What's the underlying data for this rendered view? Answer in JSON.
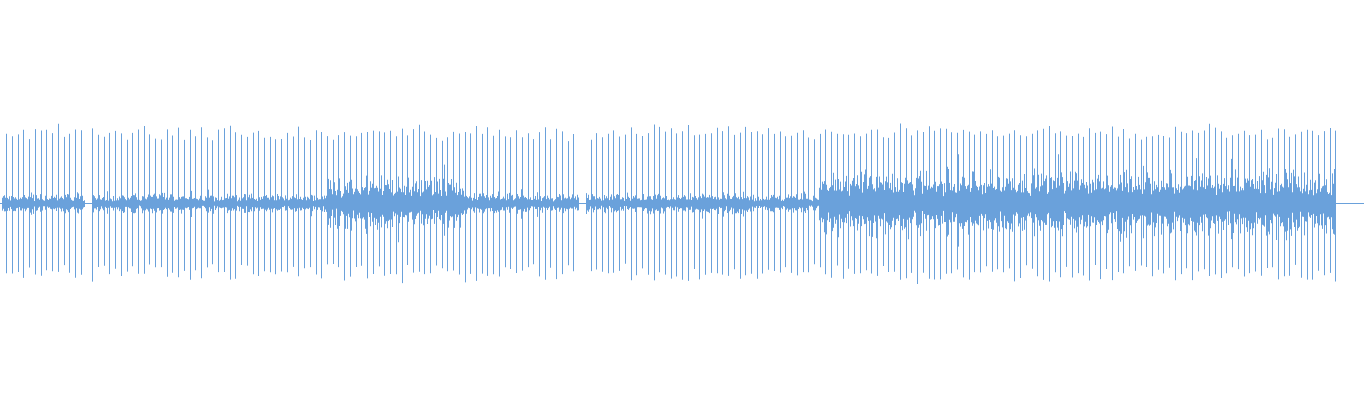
{
  "waveform": {
    "color": "#6aa1db",
    "gaps": [
      {
        "start": 0.062,
        "end": 0.067
      },
      {
        "start": 0.424,
        "end": 0.429
      }
    ],
    "loud_sections": [
      {
        "start": 0.24,
        "end": 0.34,
        "level": 0.55
      },
      {
        "start": 0.6,
        "end": 0.98,
        "level": 0.72
      }
    ],
    "beat_period_fraction": 0.0042,
    "peak_amplitude": 0.95
  }
}
